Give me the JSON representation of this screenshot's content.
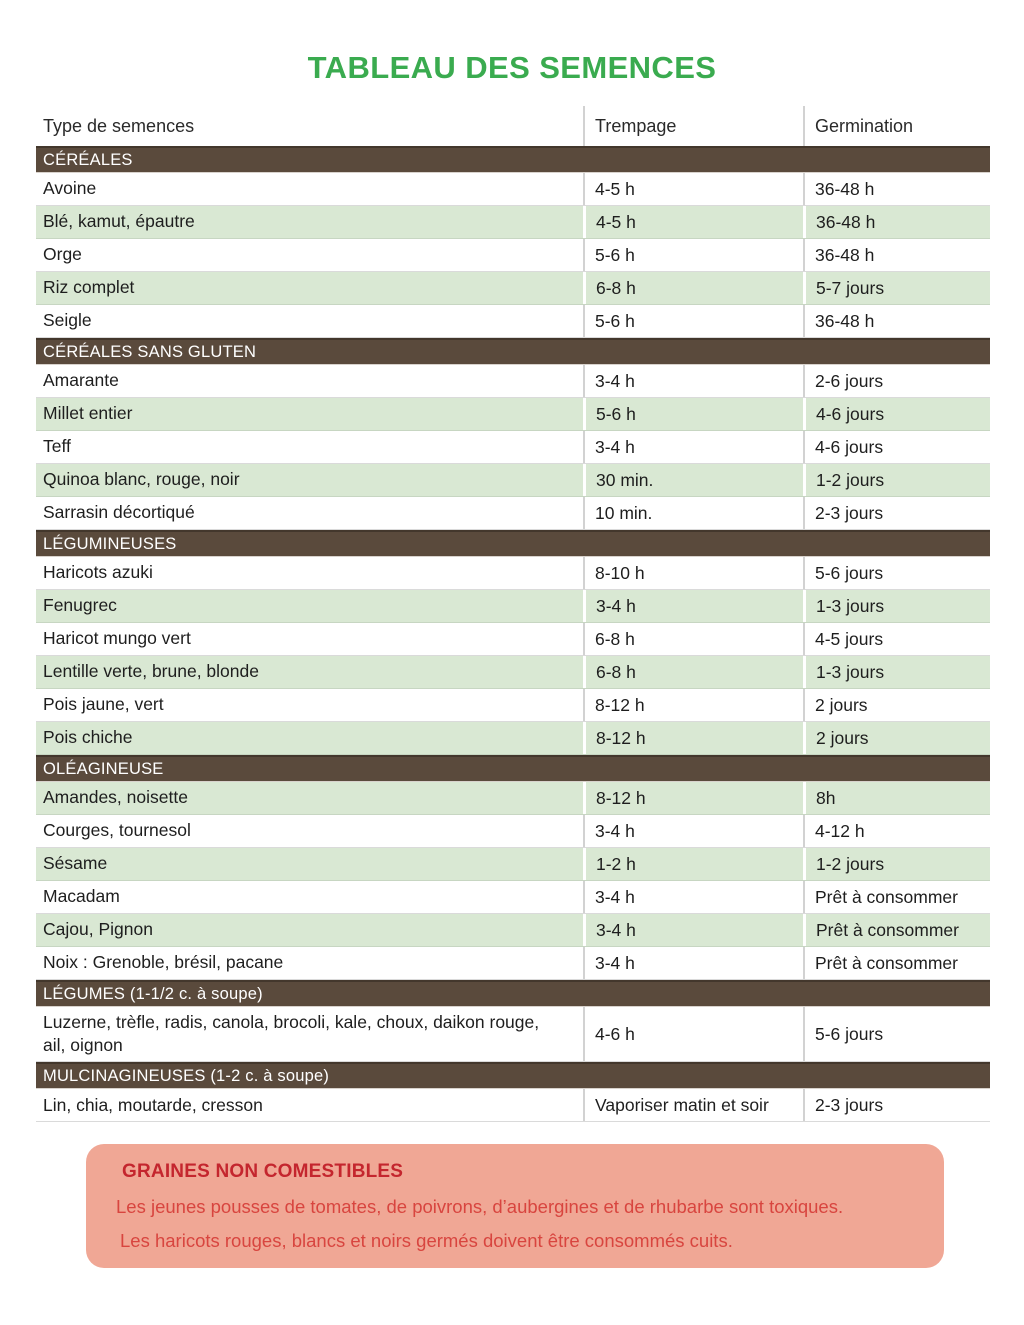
{
  "title": "TABLEAU DES SEMENCES",
  "colors": {
    "title_green": "#3aab4f",
    "section_brown": "#5a4a3c",
    "shaded_row_green": "#d9e8d3",
    "warning_background": "#f0a795",
    "warning_title_red": "#c4262e",
    "warning_text_red": "#d8453f"
  },
  "table": {
    "columns": [
      "Type de semences",
      "Trempage",
      "Germination"
    ],
    "sections": [
      {
        "name": "CÉRÉALES",
        "rows": [
          {
            "cells": [
              "Avoine",
              "4-5 h",
              "36-48 h"
            ],
            "shaded": false
          },
          {
            "cells": [
              "Blé, kamut, épautre",
              "4-5 h",
              "36-48 h"
            ],
            "shaded": true
          },
          {
            "cells": [
              "Orge",
              "5-6 h",
              "36-48 h"
            ],
            "shaded": false
          },
          {
            "cells": [
              "Riz complet",
              "6-8 h",
              "5-7 jours"
            ],
            "shaded": true
          },
          {
            "cells": [
              "Seigle",
              "5-6 h",
              "36-48 h"
            ],
            "shaded": false
          }
        ]
      },
      {
        "name": "CÉRÉALES SANS GLUTEN",
        "rows": [
          {
            "cells": [
              "Amarante",
              "3-4 h",
              "2-6 jours"
            ],
            "shaded": false
          },
          {
            "cells": [
              "Millet entier",
              "5-6 h",
              "4-6 jours"
            ],
            "shaded": true
          },
          {
            "cells": [
              "Teff",
              "3-4 h",
              "4-6 jours"
            ],
            "shaded": false
          },
          {
            "cells": [
              "Quinoa blanc, rouge, noir",
              "30 min.",
              "1-2 jours"
            ],
            "shaded": true
          },
          {
            "cells": [
              "Sarrasin décortiqué",
              "10 min.",
              "2-3 jours"
            ],
            "shaded": false
          }
        ]
      },
      {
        "name": "LÉGUMINEUSES",
        "rows": [
          {
            "cells": [
              "Haricots azuki",
              "8-10 h",
              "5-6 jours"
            ],
            "shaded": false
          },
          {
            "cells": [
              "Fenugrec",
              "3-4 h",
              "1-3 jours"
            ],
            "shaded": true
          },
          {
            "cells": [
              "Haricot mungo vert",
              "6-8 h",
              "4-5 jours"
            ],
            "shaded": false
          },
          {
            "cells": [
              "Lentille verte, brune, blonde",
              "6-8 h",
              "1-3 jours"
            ],
            "shaded": true
          },
          {
            "cells": [
              "Pois jaune, vert",
              "8-12 h",
              "2 jours"
            ],
            "shaded": false
          },
          {
            "cells": [
              "Pois chiche",
              "8-12 h",
              "2 jours"
            ],
            "shaded": true
          }
        ]
      },
      {
        "name": "OLÉAGINEUSE",
        "rows": [
          {
            "cells": [
              "Amandes, noisette",
              "8-12 h",
              "8h"
            ],
            "shaded": true
          },
          {
            "cells": [
              "Courges, tournesol",
              "3-4 h",
              "4-12 h"
            ],
            "shaded": false
          },
          {
            "cells": [
              "Sésame",
              "1-2 h",
              "1-2 jours"
            ],
            "shaded": true
          },
          {
            "cells": [
              "Macadam",
              "3-4 h",
              "Prêt à consommer"
            ],
            "shaded": false
          },
          {
            "cells": [
              "Cajou, Pignon",
              "3-4 h",
              "Prêt à consommer"
            ],
            "shaded": true
          },
          {
            "cells": [
              "Noix : Grenoble, brésil, pacane",
              "3-4 h",
              "Prêt à consommer"
            ],
            "shaded": false
          }
        ]
      },
      {
        "name": "LÉGUMES (1-1/2 c. à soupe)",
        "rows": [
          {
            "cells": [
              "Luzerne, trèfle, radis, canola, brocoli, kale, choux, daikon rouge, ail, oignon",
              "4-6 h",
              "5-6 jours"
            ],
            "shaded": false
          }
        ]
      },
      {
        "name": "MULCINAGINEUSES (1-2 c. à soupe)",
        "rows": [
          {
            "cells": [
              "Lin, chia, moutarde, cresson",
              "Vaporiser matin et soir",
              "2-3 jours"
            ],
            "shaded": false
          }
        ]
      }
    ]
  },
  "warning": {
    "title": "GRAINES NON COMESTIBLES",
    "lines": [
      "Les jeunes pousses de tomates, de poivrons, d’aubergines et de rhubarbe sont toxiques.",
      "Les haricots rouges, blancs et noirs germés doivent être consommés cuits."
    ]
  }
}
